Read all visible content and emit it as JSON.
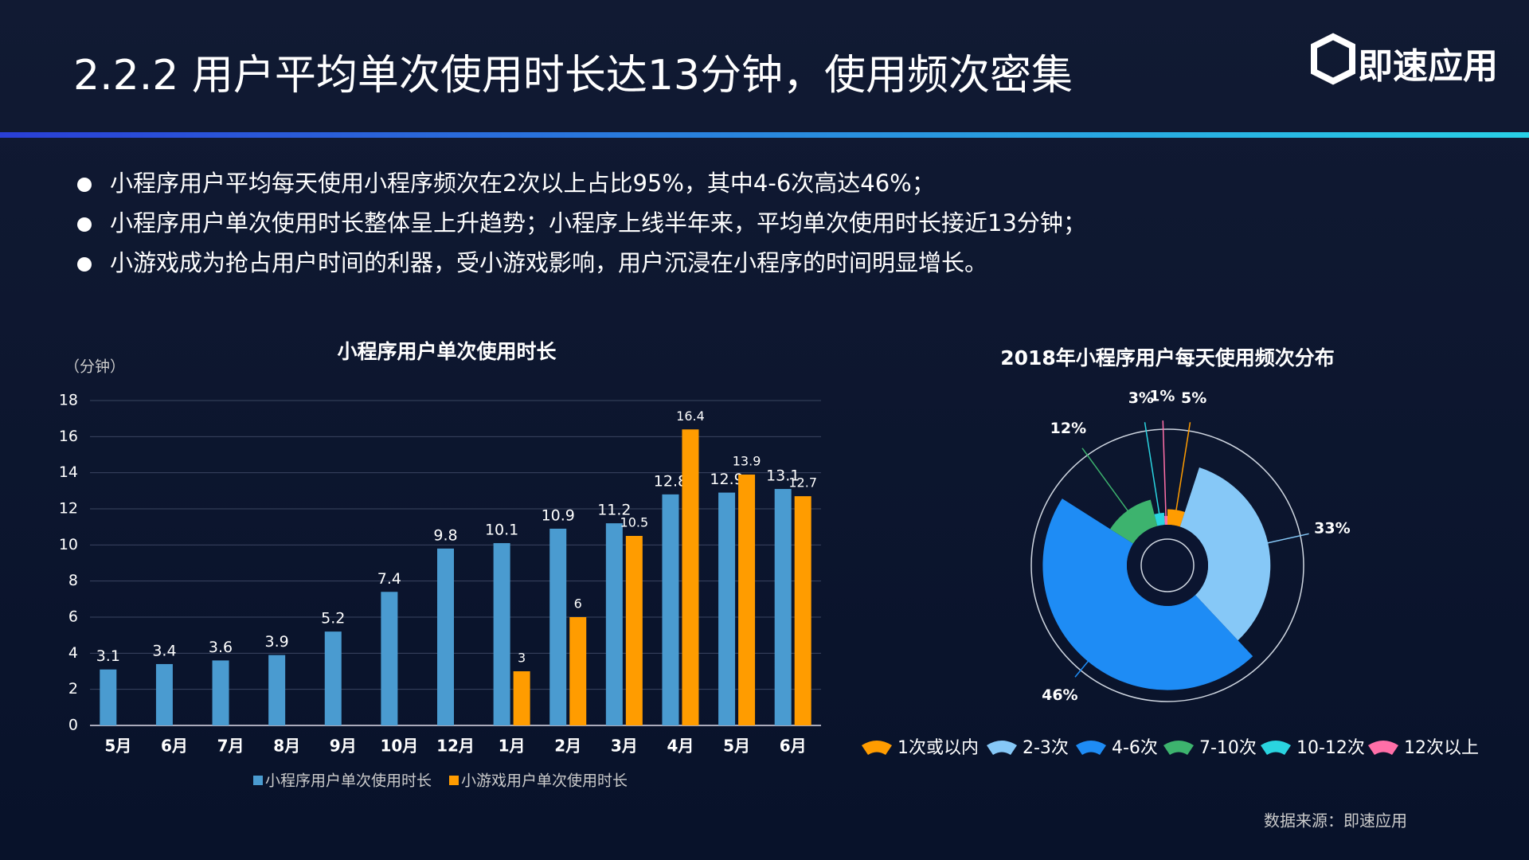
{
  "header": {
    "title": "2.2.2  用户平均单次使用时长达13分钟，使用频次密集",
    "logo": "即速应用"
  },
  "bullets": [
    "小程序用户平均每天使用小程序频次在2次以上占比95%，其中4-6次高达46%；",
    "小程序用户单次使用时长整体呈上升趋势；小程序上线半年来，平均单次使用时长接近13分钟；",
    "小游戏成为抢占用户时间的利器，受小游戏影响，用户沉浸在小程序的时间明显增长。"
  ],
  "chart_data": [
    {
      "type": "bar",
      "title": "小程序用户单次使用时长",
      "y_label": "（分钟）",
      "categories": [
        "5月",
        "6月",
        "7月",
        "8月",
        "9月",
        "10月",
        "12月",
        "1月",
        "2月",
        "3月",
        "4月",
        "5月",
        "6月"
      ],
      "series": [
        {
          "name": "小程序用户单次使用时长",
          "color": "#4a9bd0",
          "values": [
            3.1,
            3.4,
            3.6,
            3.9,
            5.2,
            7.4,
            9.8,
            10.1,
            10.9,
            11.2,
            12.8,
            12.9,
            13.1
          ]
        },
        {
          "name": "小游戏用户单次使用时长",
          "color": "#ff9c00",
          "values": [
            null,
            null,
            null,
            null,
            null,
            null,
            null,
            3,
            6,
            10.5,
            16.4,
            13.9,
            12.7
          ]
        }
      ],
      "ylim": [
        0,
        18
      ],
      "yticks": [
        0,
        2,
        4,
        6,
        8,
        10,
        12,
        14,
        16,
        18
      ],
      "grid": true
    },
    {
      "type": "pie",
      "title": "2018年小程序用户每天使用频次分布",
      "categories": [
        "1次或以内",
        "2-3次",
        "4-6次",
        "7-10次",
        "10-12次",
        "12次以上"
      ],
      "values": [
        5,
        33,
        46,
        12,
        3,
        1
      ],
      "value_labels": [
        "5%",
        "33%",
        "46%",
        "12%",
        "3%",
        "1%"
      ],
      "colors": [
        "#ff9c00",
        "#86c8f7",
        "#1e8cf5",
        "#3db36e",
        "#2ad4e0",
        "#ff6fa8"
      ]
    }
  ],
  "footer": {
    "source": "数据来源：即速应用"
  }
}
